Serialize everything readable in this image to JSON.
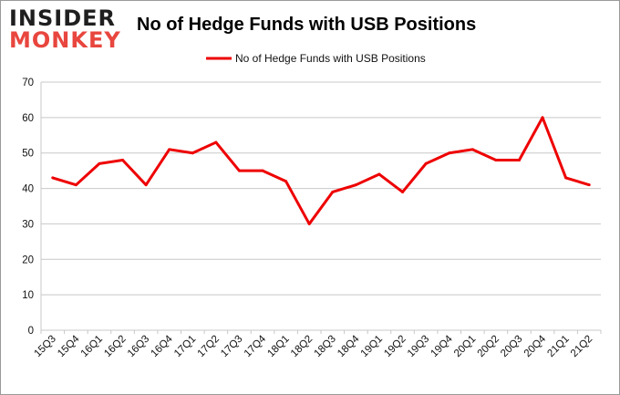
{
  "brand": {
    "line1": "INSIDER",
    "line2": "MONKEY"
  },
  "colors": {
    "series": "#ee0000",
    "grid": "#c8c8c8",
    "logo_accent": "#e8463e"
  },
  "chart_data": {
    "type": "line",
    "title": "No of Hedge Funds with USB Positions",
    "xlabel": "",
    "ylabel": "",
    "ylim": [
      0,
      70
    ],
    "yticks": [
      0,
      10,
      20,
      30,
      40,
      50,
      60,
      70
    ],
    "grid": true,
    "legend_position": "top-center",
    "categories": [
      "15Q3",
      "15Q4",
      "16Q1",
      "16Q2",
      "16Q3",
      "16Q4",
      "17Q1",
      "17Q2",
      "17Q3",
      "17Q4",
      "18Q1",
      "18Q2",
      "18Q3",
      "18Q4",
      "19Q1",
      "19Q2",
      "19Q3",
      "19Q4",
      "20Q1",
      "20Q2",
      "20Q3",
      "20Q4",
      "21Q1",
      "21Q2"
    ],
    "series": [
      {
        "name": "No of Hedge Funds with USB Positions",
        "values": [
          43,
          41,
          47,
          48,
          41,
          51,
          50,
          53,
          45,
          45,
          42,
          30,
          39,
          41,
          44,
          39,
          47,
          50,
          51,
          48,
          48,
          60,
          43,
          41
        ]
      }
    ]
  }
}
